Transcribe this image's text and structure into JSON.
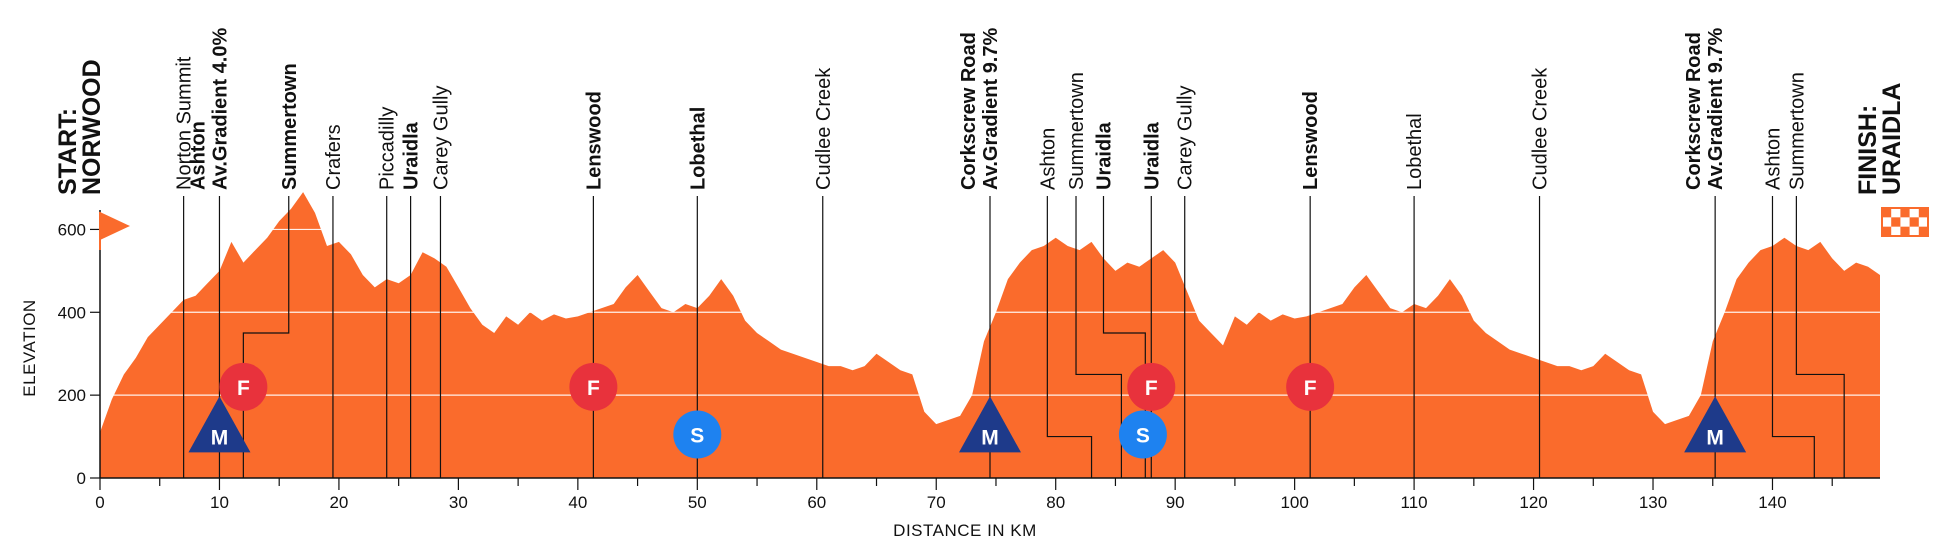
{
  "chart_data": {
    "type": "area",
    "xlabel": "DISTANCE IN KM",
    "ylabel": "ELEVATION",
    "xlim": [
      0,
      149
    ],
    "ylim": [
      0,
      700
    ],
    "xticks": [
      0,
      10,
      20,
      30,
      40,
      50,
      60,
      70,
      80,
      90,
      100,
      110,
      120,
      130,
      140
    ],
    "yticks": [
      0,
      200,
      400,
      600
    ],
    "grid": "horizontal",
    "fill_color": "#fa6b2c",
    "elevation": {
      "x": [
        0,
        1,
        2,
        3,
        4,
        5,
        6,
        7,
        8,
        9,
        10,
        11,
        12,
        13,
        14,
        15,
        16,
        17,
        18,
        19,
        20,
        21,
        22,
        23,
        24,
        25,
        26,
        27,
        28,
        29,
        30,
        31,
        32,
        33,
        34,
        35,
        36,
        37,
        38,
        39,
        40,
        41,
        42,
        43,
        44,
        45,
        46,
        47,
        48,
        49,
        50,
        51,
        52,
        53,
        54,
        55,
        56,
        57,
        58,
        59,
        60,
        61,
        62,
        63,
        64,
        65,
        66,
        67,
        68,
        69,
        70,
        71,
        72,
        73,
        74,
        75,
        76,
        77,
        78,
        79,
        80,
        81,
        82,
        83,
        84,
        85,
        86,
        87,
        88,
        89,
        90,
        91,
        92,
        93,
        94,
        95,
        96,
        97,
        98,
        99,
        100,
        101,
        102,
        103,
        104,
        105,
        106,
        107,
        108,
        109,
        110,
        111,
        112,
        113,
        114,
        115,
        116,
        117,
        118,
        119,
        120,
        121,
        122,
        123,
        124,
        125,
        126,
        127,
        128,
        129,
        130,
        131,
        132,
        133,
        134,
        135,
        136,
        137,
        138,
        139,
        140,
        141,
        142,
        143,
        144,
        145,
        146,
        147,
        148,
        149
      ],
      "y": [
        110,
        190,
        250,
        290,
        340,
        370,
        400,
        430,
        440,
        470,
        500,
        570,
        520,
        550,
        580,
        620,
        650,
        690,
        640,
        560,
        570,
        540,
        490,
        460,
        480,
        470,
        490,
        545,
        530,
        510,
        460,
        410,
        370,
        350,
        390,
        370,
        400,
        380,
        395,
        385,
        390,
        400,
        410,
        420,
        460,
        490,
        450,
        410,
        400,
        420,
        410,
        440,
        480,
        440,
        380,
        350,
        330,
        310,
        300,
        290,
        280,
        270,
        270,
        260,
        270,
        300,
        280,
        260,
        250,
        160,
        130,
        140,
        150,
        200,
        330,
        400,
        480,
        520,
        550,
        560,
        580,
        560,
        550,
        570,
        530,
        500,
        520,
        510,
        530,
        550,
        520,
        450,
        380,
        350,
        320,
        390,
        370,
        400,
        380,
        395,
        385,
        390,
        400,
        410,
        420,
        460,
        490,
        450,
        410,
        400,
        420,
        410,
        440,
        480,
        440,
        380,
        350,
        330,
        310,
        300,
        290,
        280,
        270,
        270,
        260,
        270,
        300,
        280,
        260,
        250,
        160,
        130,
        140,
        150,
        200,
        330,
        400,
        480,
        520,
        550,
        560,
        580,
        560,
        550,
        570,
        530,
        500,
        520,
        510,
        490
      ]
    }
  },
  "axis": {
    "x_tick_labels": [
      "0",
      "10",
      "20",
      "30",
      "40",
      "50",
      "60",
      "70",
      "80",
      "90",
      "100",
      "110",
      "120",
      "130",
      "140"
    ],
    "y_tick_labels": [
      "0",
      "200",
      "400",
      "600"
    ]
  },
  "start": {
    "line1": "START:",
    "line2": "NORWOOD",
    "x_km": 0,
    "flag": "start-flag"
  },
  "finish": {
    "line1": "FINISH:",
    "line2": "URAIDLA",
    "x_km": 149,
    "flag": "finish-flag"
  },
  "waypoints": [
    {
      "km": 7,
      "lines": [
        "Norton Summit"
      ],
      "bold": false,
      "line_end": 700
    },
    {
      "km": 10,
      "lines": [
        "Ashton",
        "Av.Gradient 4.0%"
      ],
      "bold": true,
      "line_end": 700
    },
    {
      "km": 15.8,
      "lines": [
        "Summertown"
      ],
      "bold": true,
      "line_end": 700,
      "elbow": {
        "x": 12,
        "y": 350
      }
    },
    {
      "km": 19.5,
      "lines": [
        "Crafers"
      ],
      "bold": false,
      "line_end": 700
    },
    {
      "km": 24,
      "lines": [
        "Piccadilly"
      ],
      "bold": false,
      "line_end": 700
    },
    {
      "km": 26,
      "lines": [
        "Uraidla"
      ],
      "bold": true,
      "line_end": 700
    },
    {
      "km": 28.5,
      "lines": [
        "Carey Gully"
      ],
      "bold": false,
      "line_end": 700
    },
    {
      "km": 41.3,
      "lines": [
        "Lenswood"
      ],
      "bold": true,
      "line_end": 700
    },
    {
      "km": 50,
      "lines": [
        "Lobethal"
      ],
      "bold": true,
      "line_end": 700
    },
    {
      "km": 60.5,
      "lines": [
        "Cudlee Creek"
      ],
      "bold": false,
      "line_end": 700
    },
    {
      "km": 74.5,
      "lines": [
        "Corkscrew Road",
        "Av.Gradient 9.7%"
      ],
      "bold": true,
      "line_end": 700
    },
    {
      "km": 79.3,
      "lines": [
        "Ashton"
      ],
      "bold": false,
      "line_end": 700,
      "elbow": {
        "x": 83,
        "y": 100
      }
    },
    {
      "km": 81.7,
      "lines": [
        "Summertown"
      ],
      "bold": false,
      "line_end": 700,
      "elbow": {
        "x": 85.5,
        "y": 250
      }
    },
    {
      "km": 84,
      "lines": [
        "Uraidla"
      ],
      "bold": true,
      "line_end": 700,
      "elbow": {
        "x": 87.5,
        "y": 350
      }
    },
    {
      "km": 88,
      "lines": [
        "Uraidla"
      ],
      "bold": true,
      "line_end": 700
    },
    {
      "km": 90.8,
      "lines": [
        "Carey Gully"
      ],
      "bold": false,
      "line_end": 700
    },
    {
      "km": 101.3,
      "lines": [
        "Lenswood"
      ],
      "bold": true,
      "line_end": 700
    },
    {
      "km": 110,
      "lines": [
        "Lobethal"
      ],
      "bold": false,
      "line_end": 700
    },
    {
      "km": 120.5,
      "lines": [
        "Cudlee Creek"
      ],
      "bold": false,
      "line_end": 700
    },
    {
      "km": 135.2,
      "lines": [
        "Corkscrew Road",
        "Av.Gradient 9.7%"
      ],
      "bold": true,
      "line_end": 700
    },
    {
      "km": 140,
      "lines": [
        "Ashton"
      ],
      "bold": false,
      "line_end": 700,
      "elbow": {
        "x": 143.5,
        "y": 100
      }
    },
    {
      "km": 142,
      "lines": [
        "Summertown"
      ],
      "bold": false,
      "line_end": 700,
      "elbow": {
        "x": 146,
        "y": 250
      }
    }
  ],
  "markers": [
    {
      "type": "F",
      "km": 12,
      "elev": 220,
      "shape": "circle",
      "color": "#e8323c"
    },
    {
      "type": "M",
      "km": 10,
      "elev": 110,
      "shape": "triangle",
      "color": "#1e3a8a"
    },
    {
      "type": "F",
      "km": 41.3,
      "elev": 220,
      "shape": "circle",
      "color": "#e8323c"
    },
    {
      "type": "S",
      "km": 50,
      "elev": 105,
      "shape": "circle",
      "color": "#1e82f0"
    },
    {
      "type": "M",
      "km": 74.5,
      "elev": 110,
      "shape": "triangle",
      "color": "#1e3a8a"
    },
    {
      "type": "F",
      "km": 88,
      "elev": 220,
      "shape": "circle",
      "color": "#e8323c"
    },
    {
      "type": "S",
      "km": 87.3,
      "elev": 105,
      "shape": "circle",
      "color": "#1e82f0"
    },
    {
      "type": "F",
      "km": 101.3,
      "elev": 220,
      "shape": "circle",
      "color": "#e8323c"
    },
    {
      "type": "M",
      "km": 135.2,
      "elev": 110,
      "shape": "triangle",
      "color": "#1e3a8a"
    }
  ]
}
